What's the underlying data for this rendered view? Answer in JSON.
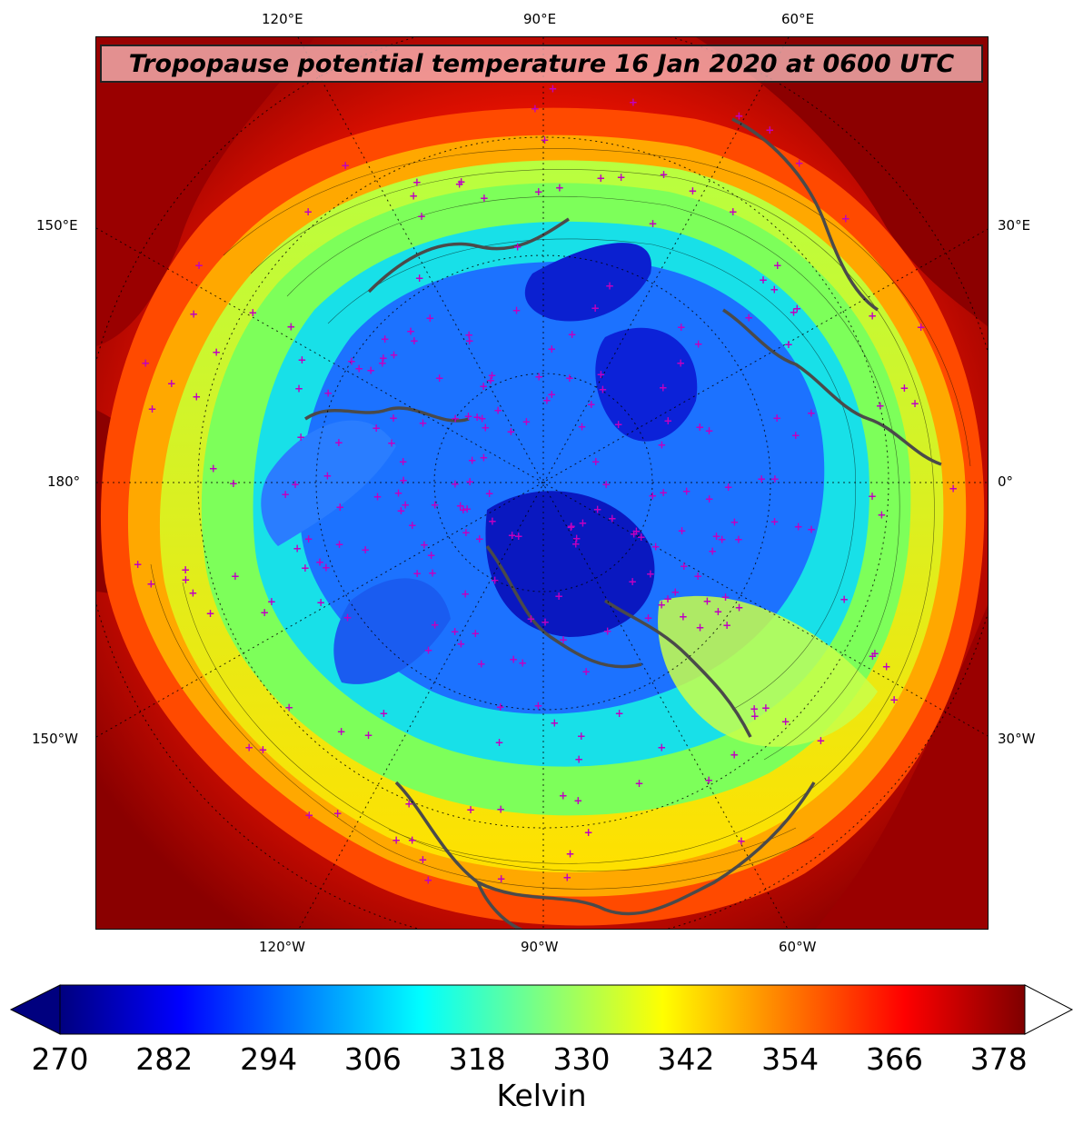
{
  "title": "Tropopause potential temperature 16 Jan 2020 at 0600 UTC",
  "map_labels": {
    "top": [
      "120°E",
      "90°E",
      "60°E"
    ],
    "bottom": [
      "120°W",
      "90°W",
      "60°W"
    ],
    "left": [
      "150°E",
      "180°",
      "150°W"
    ],
    "right": [
      "30°E",
      "0°",
      "30°W"
    ]
  },
  "colorbar": {
    "label": "Kelvin",
    "ticks": [
      "270",
      "282",
      "294",
      "306",
      "318",
      "330",
      "342",
      "354",
      "366",
      "378"
    ],
    "min": 270,
    "max": 381,
    "extend": "both",
    "colormap": "jet",
    "colors": [
      "#00007f",
      "#0000ff",
      "#007fff",
      "#00ffff",
      "#7fff7f",
      "#ffff00",
      "#ff7f00",
      "#ff0000",
      "#7f0000"
    ]
  },
  "map_colors": {
    "outer": "#b00000",
    "ring": "#ff3000",
    "mid": "#ffd000",
    "inner": "#9cff5a",
    "cyan": "#12e6e6",
    "blue": "#1a6aff",
    "deep": "#0a1ad0",
    "coast": "#4a4a4a",
    "stations": "#c000c0"
  }
}
